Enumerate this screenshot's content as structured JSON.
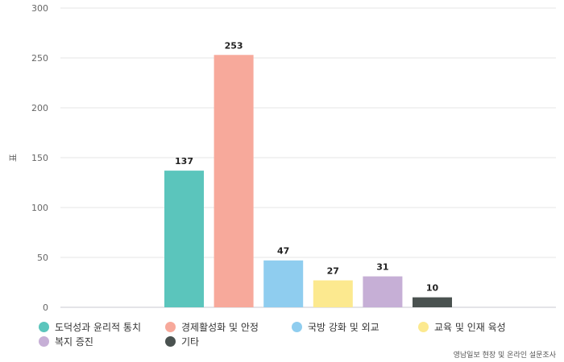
{
  "chart_data": {
    "type": "bar",
    "categories": [
      "도덕성과 윤리적 통치",
      "경제활성화 및 안정",
      "국방 강화 및 외교",
      "교육 및 인재 육성",
      "복지 증진",
      "기타"
    ],
    "values": [
      137,
      253,
      47,
      27,
      31,
      10
    ],
    "colors": [
      "#5bc5bc",
      "#f7a99b",
      "#8fcdef",
      "#fce98f",
      "#c6afd6",
      "#4a5250"
    ],
    "ylabel": "표",
    "yticks": [
      0,
      50,
      100,
      150,
      200,
      250,
      300
    ],
    "ylim": [
      0,
      300
    ],
    "grid": true,
    "legend_position": "bottom",
    "source": "영남일보 현장 및 온라인 설문조사"
  }
}
